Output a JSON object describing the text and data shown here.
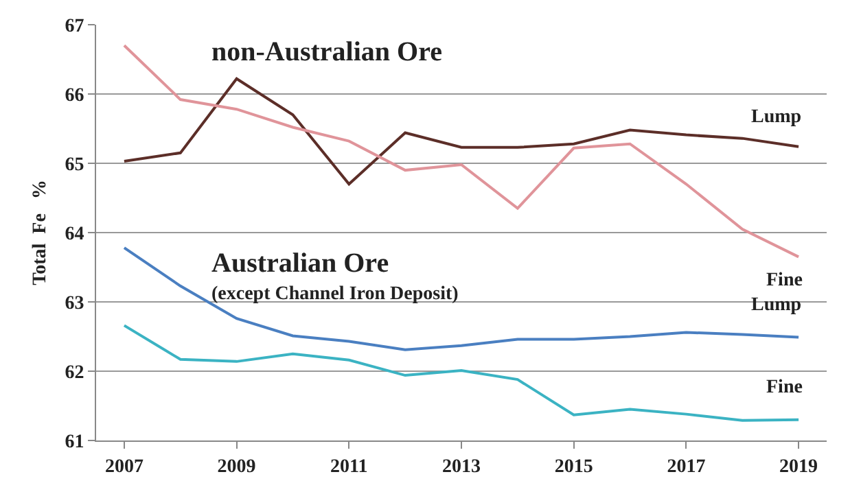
{
  "chart_data": {
    "type": "line",
    "ylabel": "Total  Fe   %",
    "x": [
      2007,
      2008,
      2009,
      2010,
      2011,
      2012,
      2013,
      2014,
      2015,
      2016,
      2017,
      2018,
      2019
    ],
    "xlim": [
      2006.5,
      2019.5
    ],
    "xticks": [
      2007,
      2009,
      2011,
      2013,
      2015,
      2017,
      2019
    ],
    "ylim": [
      61,
      67
    ],
    "yticks": [
      61,
      62,
      63,
      64,
      65,
      66,
      67
    ],
    "grid": "y",
    "legend": false,
    "marker": "none",
    "line_style": "solid",
    "annotations": [
      "non-Australian Ore",
      "Australian Ore",
      "(except Channel Iron Deposit)"
    ],
    "series": [
      {
        "name": "Lump",
        "color": "#5c2e28",
        "values": [
          65.03,
          65.15,
          66.22,
          65.7,
          64.7,
          65.44,
          65.23,
          65.23,
          65.28,
          65.48,
          65.41,
          65.36,
          65.24
        ]
      },
      {
        "name": "Fine",
        "color": "#e0949a",
        "values": [
          66.7,
          65.92,
          65.78,
          65.52,
          65.32,
          64.9,
          64.98,
          64.35,
          65.22,
          65.28,
          64.7,
          64.05,
          63.65
        ]
      },
      {
        "name": "Lump",
        "color": "#4a7fc1",
        "values": [
          63.78,
          63.23,
          62.76,
          62.51,
          62.43,
          62.31,
          62.37,
          62.46,
          62.46,
          62.5,
          62.56,
          62.53,
          62.49
        ]
      },
      {
        "name": "Fine",
        "color": "#3bb3c3",
        "values": [
          62.66,
          62.17,
          62.14,
          62.25,
          62.16,
          61.94,
          62.01,
          61.88,
          61.37,
          61.45,
          61.38,
          61.29,
          61.3
        ]
      }
    ]
  }
}
